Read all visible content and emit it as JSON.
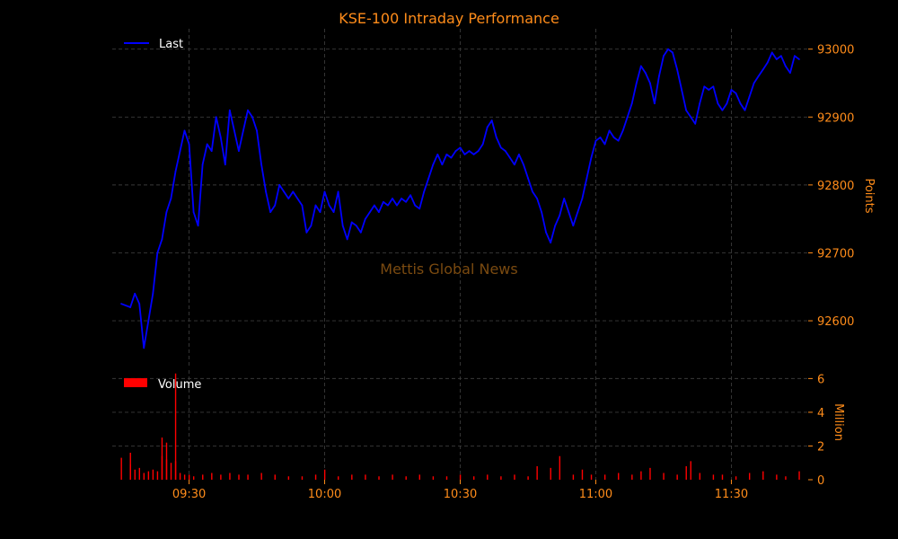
{
  "chart_data": [
    {
      "type": "line",
      "title": "KSE-100 Intraday Performance",
      "ylabel": "Points",
      "ylim": [
        92530,
        93030
      ],
      "yticks": [
        92600,
        92700,
        92800,
        92900,
        93000
      ],
      "xrange": [
        "09:13",
        "11:47"
      ],
      "xticks": [
        "09:30",
        "10:00",
        "10:30",
        "11:00",
        "11:30"
      ],
      "legend_position": "top-left",
      "grid": true,
      "series": [
        {
          "name": "Last",
          "color": "#0000ff",
          "points": [
            [
              "09:15",
              92625
            ],
            [
              "09:17",
              92620
            ],
            [
              "09:18",
              92640
            ],
            [
              "09:19",
              92625
            ],
            [
              "09:20",
              92560
            ],
            [
              "09:21",
              92600
            ],
            [
              "09:22",
              92640
            ],
            [
              "09:23",
              92700
            ],
            [
              "09:24",
              92720
            ],
            [
              "09:25",
              92760
            ],
            [
              "09:26",
              92780
            ],
            [
              "09:27",
              92820
            ],
            [
              "09:28",
              92850
            ],
            [
              "09:29",
              92880
            ],
            [
              "09:30",
              92860
            ],
            [
              "09:31",
              92760
            ],
            [
              "09:32",
              92740
            ],
            [
              "09:33",
              92830
            ],
            [
              "09:34",
              92860
            ],
            [
              "09:35",
              92850
            ],
            [
              "09:36",
              92900
            ],
            [
              "09:37",
              92870
            ],
            [
              "09:38",
              92830
            ],
            [
              "09:39",
              92910
            ],
            [
              "09:40",
              92880
            ],
            [
              "09:41",
              92850
            ],
            [
              "09:42",
              92880
            ],
            [
              "09:43",
              92910
            ],
            [
              "09:44",
              92900
            ],
            [
              "09:45",
              92880
            ],
            [
              "09:46",
              92830
            ],
            [
              "09:47",
              92790
            ],
            [
              "09:48",
              92760
            ],
            [
              "09:49",
              92770
            ],
            [
              "09:50",
              92800
            ],
            [
              "09:51",
              92790
            ],
            [
              "09:52",
              92780
            ],
            [
              "09:53",
              92790
            ],
            [
              "09:54",
              92780
            ],
            [
              "09:55",
              92770
            ],
            [
              "09:56",
              92730
            ],
            [
              "09:57",
              92740
            ],
            [
              "09:58",
              92770
            ],
            [
              "09:59",
              92760
            ],
            [
              "10:00",
              92790
            ],
            [
              "10:01",
              92770
            ],
            [
              "10:02",
              92760
            ],
            [
              "10:03",
              92790
            ],
            [
              "10:04",
              92740
            ],
            [
              "10:05",
              92720
            ],
            [
              "10:06",
              92745
            ],
            [
              "10:07",
              92740
            ],
            [
              "10:08",
              92730
            ],
            [
              "10:09",
              92750
            ],
            [
              "10:10",
              92760
            ],
            [
              "10:11",
              92770
            ],
            [
              "10:12",
              92760
            ],
            [
              "10:13",
              92775
            ],
            [
              "10:14",
              92770
            ],
            [
              "10:15",
              92780
            ],
            [
              "10:16",
              92770
            ],
            [
              "10:17",
              92780
            ],
            [
              "10:18",
              92775
            ],
            [
              "10:19",
              92785
            ],
            [
              "10:20",
              92770
            ],
            [
              "10:21",
              92765
            ],
            [
              "10:22",
              92790
            ],
            [
              "10:23",
              92810
            ],
            [
              "10:24",
              92830
            ],
            [
              "10:25",
              92845
            ],
            [
              "10:26",
              92830
            ],
            [
              "10:27",
              92845
            ],
            [
              "10:28",
              92840
            ],
            [
              "10:29",
              92850
            ],
            [
              "10:30",
              92855
            ],
            [
              "10:31",
              92845
            ],
            [
              "10:32",
              92850
            ],
            [
              "10:33",
              92845
            ],
            [
              "10:34",
              92850
            ],
            [
              "10:35",
              92860
            ],
            [
              "10:36",
              92885
            ],
            [
              "10:37",
              92895
            ],
            [
              "10:38",
              92870
            ],
            [
              "10:39",
              92855
            ],
            [
              "10:40",
              92850
            ],
            [
              "10:41",
              92840
            ],
            [
              "10:42",
              92830
            ],
            [
              "10:43",
              92845
            ],
            [
              "10:44",
              92830
            ],
            [
              "10:45",
              92810
            ],
            [
              "10:46",
              92790
            ],
            [
              "10:47",
              92780
            ],
            [
              "10:48",
              92760
            ],
            [
              "10:49",
              92730
            ],
            [
              "10:50",
              92715
            ],
            [
              "10:51",
              92740
            ],
            [
              "10:52",
              92755
            ],
            [
              "10:53",
              92780
            ],
            [
              "10:54",
              92760
            ],
            [
              "10:55",
              92740
            ],
            [
              "10:56",
              92760
            ],
            [
              "10:57",
              92780
            ],
            [
              "10:58",
              92810
            ],
            [
              "10:59",
              92840
            ],
            [
              "11:00",
              92865
            ],
            [
              "11:01",
              92870
            ],
            [
              "11:02",
              92860
            ],
            [
              "11:03",
              92880
            ],
            [
              "11:04",
              92870
            ],
            [
              "11:05",
              92865
            ],
            [
              "11:06",
              92880
            ],
            [
              "11:07",
              92900
            ],
            [
              "11:08",
              92920
            ],
            [
              "11:09",
              92950
            ],
            [
              "11:10",
              92975
            ],
            [
              "11:11",
              92965
            ],
            [
              "11:12",
              92950
            ],
            [
              "11:13",
              92920
            ],
            [
              "11:14",
              92960
            ],
            [
              "11:15",
              92990
            ],
            [
              "11:16",
              93000
            ],
            [
              "11:17",
              92995
            ],
            [
              "11:18",
              92970
            ],
            [
              "11:19",
              92940
            ],
            [
              "11:20",
              92910
            ],
            [
              "11:21",
              92900
            ],
            [
              "11:22",
              92890
            ],
            [
              "11:23",
              92920
            ],
            [
              "11:24",
              92945
            ],
            [
              "11:25",
              92940
            ],
            [
              "11:26",
              92945
            ],
            [
              "11:27",
              92920
            ],
            [
              "11:28",
              92910
            ],
            [
              "11:29",
              92920
            ],
            [
              "11:30",
              92940
            ],
            [
              "11:31",
              92935
            ],
            [
              "11:32",
              92920
            ],
            [
              "11:33",
              92910
            ],
            [
              "11:34",
              92930
            ],
            [
              "11:35",
              92950
            ],
            [
              "11:36",
              92960
            ],
            [
              "11:37",
              92970
            ],
            [
              "11:38",
              92980
            ],
            [
              "11:39",
              92995
            ],
            [
              "11:40",
              92985
            ],
            [
              "11:41",
              92990
            ],
            [
              "11:42",
              92975
            ],
            [
              "11:43",
              92965
            ],
            [
              "11:44",
              92990
            ],
            [
              "11:45",
              92985
            ]
          ]
        }
      ]
    },
    {
      "type": "bar",
      "ylabel": "Million",
      "ylim": [
        0,
        6.5
      ],
      "yticks": [
        0,
        2,
        4,
        6
      ],
      "xrange": [
        "09:13",
        "11:47"
      ],
      "xticks": [
        "09:30",
        "10:00",
        "10:30",
        "11:00",
        "11:30"
      ],
      "legend_position": "top-left",
      "grid": true,
      "series": [
        {
          "name": "Volume",
          "color": "#ff0000",
          "bars": [
            [
              "09:15",
              1.3
            ],
            [
              "09:17",
              0.9
            ],
            [
              "09:17",
              1.6
            ],
            [
              "09:18",
              0.6
            ],
            [
              "09:19",
              0.7
            ],
            [
              "09:20",
              0.4
            ],
            [
              "09:21",
              0.5
            ],
            [
              "09:22",
              0.6
            ],
            [
              "09:23",
              0.5
            ],
            [
              "09:24",
              1.4
            ],
            [
              "09:24",
              2.5
            ],
            [
              "09:25",
              1.2
            ],
            [
              "09:25",
              2.2
            ],
            [
              "09:26",
              1.0
            ],
            [
              "09:27",
              1.1
            ],
            [
              "09:27",
              6.3
            ],
            [
              "09:28",
              0.4
            ],
            [
              "09:29",
              0.3
            ],
            [
              "09:30",
              0.3
            ],
            [
              "09:31",
              0.2
            ],
            [
              "09:33",
              0.3
            ],
            [
              "09:35",
              0.4
            ],
            [
              "09:37",
              0.3
            ],
            [
              "09:39",
              0.4
            ],
            [
              "09:41",
              0.3
            ],
            [
              "09:43",
              0.3
            ],
            [
              "09:46",
              0.4
            ],
            [
              "09:49",
              0.3
            ],
            [
              "09:52",
              0.2
            ],
            [
              "09:55",
              0.2
            ],
            [
              "09:58",
              0.3
            ],
            [
              "10:00",
              0.6
            ],
            [
              "10:03",
              0.2
            ],
            [
              "10:06",
              0.3
            ],
            [
              "10:09",
              0.3
            ],
            [
              "10:12",
              0.2
            ],
            [
              "10:15",
              0.3
            ],
            [
              "10:18",
              0.2
            ],
            [
              "10:21",
              0.3
            ],
            [
              "10:24",
              0.2
            ],
            [
              "10:27",
              0.2
            ],
            [
              "10:30",
              0.3
            ],
            [
              "10:33",
              0.2
            ],
            [
              "10:36",
              0.3
            ],
            [
              "10:39",
              0.2
            ],
            [
              "10:42",
              0.3
            ],
            [
              "10:45",
              0.2
            ],
            [
              "10:47",
              0.8
            ],
            [
              "10:50",
              0.7
            ],
            [
              "10:52",
              1.4
            ],
            [
              "10:55",
              0.3
            ],
            [
              "10:57",
              0.6
            ],
            [
              "10:59",
              0.3
            ],
            [
              "11:02",
              0.3
            ],
            [
              "11:05",
              0.4
            ],
            [
              "11:08",
              0.3
            ],
            [
              "11:10",
              0.5
            ],
            [
              "11:12",
              0.7
            ],
            [
              "11:15",
              0.4
            ],
            [
              "11:18",
              0.3
            ],
            [
              "11:20",
              0.8
            ],
            [
              "11:21",
              1.1
            ],
            [
              "11:23",
              0.4
            ],
            [
              "11:26",
              0.3
            ],
            [
              "11:28",
              0.3
            ],
            [
              "11:31",
              0.2
            ],
            [
              "11:34",
              0.4
            ],
            [
              "11:37",
              0.5
            ],
            [
              "11:40",
              0.3
            ],
            [
              "11:42",
              0.2
            ],
            [
              "11:45",
              0.5
            ]
          ]
        }
      ]
    }
  ],
  "watermark": "Mettis Global News"
}
